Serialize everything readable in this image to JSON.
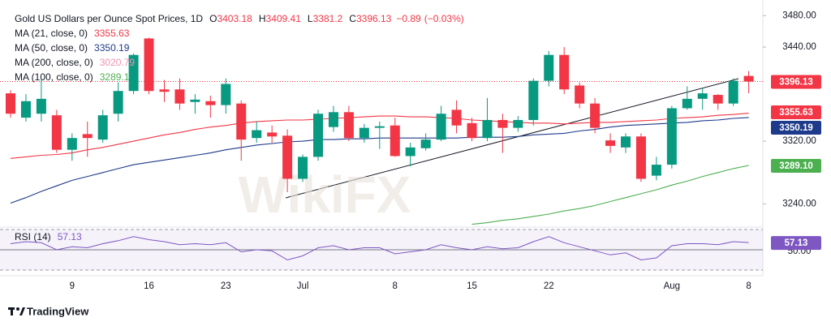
{
  "chart_data": {
    "type": "candlestick",
    "title": "Gold US Dollars per Ounce Spot Prices, 1D",
    "ohlc_labels": [
      "O",
      "H",
      "L",
      "C"
    ],
    "change": {
      "value": -0.89,
      "label": "−0.89"
    },
    "change_pct": {
      "value": -0.03,
      "label": "(−0.03%)"
    },
    "watermark": "WikiFX",
    "brand": "TradingView",
    "up_color": "#089981",
    "down_color": "#f23645",
    "categories": [
      null,
      null,
      null,
      null,
      "9",
      null,
      null,
      null,
      null,
      "16",
      null,
      null,
      null,
      null,
      "23",
      null,
      null,
      null,
      null,
      "Jul",
      null,
      null,
      null,
      null,
      null,
      "8",
      null,
      null,
      null,
      null,
      "15",
      null,
      null,
      null,
      null,
      "22",
      null,
      null,
      null,
      null,
      null,
      null,
      null,
      "Aug",
      null,
      null,
      null,
      null,
      "8"
    ],
    "open": [
      3381,
      3350,
      3355,
      3353,
      3309,
      3329,
      3322,
      3355,
      3384,
      3451,
      3386,
      3386,
      3370,
      3371,
      3366,
      3368,
      3324,
      3331,
      3327,
      3272,
      3300,
      3338,
      3357,
      3324,
      3337,
      3340,
      3301,
      3311,
      3322,
      3360,
      3343,
      3324,
      3347,
      3337,
      3347,
      3397,
      3430,
      3391,
      3368,
      3321,
      3312,
      3326,
      3276,
      3290,
      3362,
      3374,
      3379,
      3368,
      3403.18
    ],
    "high": [
      3385,
      3380,
      3400,
      3360,
      3330,
      3345,
      3360,
      3395,
      3432,
      3452,
      3398,
      3400,
      3380,
      3378,
      3400,
      3372,
      3345,
      3340,
      3335,
      3303,
      3360,
      3365,
      3365,
      3342,
      3345,
      3350,
      3318,
      3330,
      3365,
      3372,
      3350,
      3375,
      3355,
      3352,
      3400,
      3435,
      3440,
      3395,
      3375,
      3330,
      3330,
      3330,
      3300,
      3365,
      3390,
      3388,
      3380,
      3400,
      3409.41
    ],
    "low": [
      3350,
      3345,
      3345,
      3305,
      3295,
      3300,
      3318,
      3345,
      3380,
      3380,
      3370,
      3360,
      3355,
      3350,
      3355,
      3295,
      3318,
      3318,
      3255,
      3268,
      3295,
      3332,
      3320,
      3318,
      3310,
      3300,
      3288,
      3308,
      3320,
      3330,
      3320,
      3320,
      3305,
      3332,
      3340,
      3390,
      3380,
      3362,
      3330,
      3305,
      3305,
      3268,
      3270,
      3285,
      3360,
      3360,
      3360,
      3365,
      3381.2
    ],
    "close": [
      3355,
      3371,
      3374,
      3309,
      3324,
      3324,
      3353,
      3384,
      3430,
      3384,
      3383,
      3368,
      3373,
      3366,
      3393,
      3322,
      3334,
      3326,
      3272,
      3300,
      3355,
      3357,
      3324,
      3337,
      3339,
      3301,
      3312,
      3322,
      3355,
      3340,
      3324,
      3347,
      3337,
      3347,
      3397,
      3430,
      3386,
      3368,
      3337,
      3314,
      3326,
      3272,
      3290,
      3362,
      3374,
      3381,
      3368,
      3397,
      3396.13
    ],
    "series": [
      {
        "name": "MA (21, close, 0)",
        "color": "#f23645",
        "values": [
          3298,
          3300,
          3302,
          3303,
          3305,
          3309,
          3312,
          3316,
          3320,
          3324,
          3328,
          3331,
          3335,
          3338,
          3340,
          3343,
          3345,
          3346,
          3347,
          3347,
          3348,
          3349,
          3350,
          3351,
          3352,
          3352,
          3351,
          3351,
          3350,
          3349,
          3347,
          3346,
          3345,
          3344,
          3343,
          3343,
          3342,
          3343,
          3344,
          3344,
          3345,
          3346,
          3347,
          3349,
          3350,
          3351,
          3353,
          3354,
          3355.63
        ]
      },
      {
        "name": "MA (50, close, 0)",
        "color": "#1e3a8a",
        "values": [
          3241,
          3248,
          3256,
          3263,
          3270,
          3275,
          3280,
          3285,
          3290,
          3293,
          3296,
          3299,
          3302,
          3305,
          3309,
          3312,
          3315,
          3317,
          3319,
          3320,
          3322,
          3322,
          3323,
          3323,
          3324,
          3324,
          3324,
          3324,
          3324,
          3324,
          3325,
          3325,
          3325,
          3326,
          3328,
          3329,
          3330,
          3333,
          3335,
          3338,
          3340,
          3341,
          3342,
          3343,
          3344,
          3346,
          3347,
          3349,
          3350.19
        ]
      },
      {
        "name": "MA (200, close, 0)",
        "color": "#f48fb1",
        "legend_value": 3020.79
      },
      {
        "name": "MA (100, close, 0)",
        "color": "#4caf50",
        "last_label": "3289.10",
        "values": [
          null,
          null,
          null,
          null,
          null,
          null,
          null,
          null,
          null,
          null,
          null,
          null,
          null,
          null,
          null,
          null,
          null,
          null,
          null,
          null,
          null,
          null,
          null,
          null,
          null,
          null,
          null,
          null,
          null,
          null,
          3214,
          3216,
          3219,
          3221,
          3224,
          3227,
          3231,
          3234,
          3238,
          3243,
          3248,
          3253,
          3258,
          3264,
          3269,
          3275,
          3280,
          3285,
          3289.1
        ]
      }
    ],
    "ylim": [
      3212,
      3490
    ],
    "yticks": [
      {
        "value": 3480,
        "label": "3480.00"
      },
      {
        "value": 3440,
        "label": "3440.00"
      },
      {
        "value": 3320,
        "label": "3320.00"
      },
      {
        "value": 3240,
        "label": "3240.00"
      }
    ],
    "rsi": {
      "name": "RSI (14)",
      "color": "#7e57c2",
      "values": [
        56,
        58,
        57,
        50,
        53,
        52,
        56,
        59,
        63,
        60,
        58,
        55,
        56,
        55,
        57,
        48,
        50,
        49,
        40,
        44,
        52,
        54,
        50,
        52,
        52,
        46,
        48,
        50,
        55,
        52,
        50,
        53,
        51,
        52,
        58,
        63,
        57,
        53,
        49,
        45,
        47,
        40,
        42,
        54,
        56,
        56,
        55,
        58,
        57.13
      ],
      "ylim": [
        30,
        70
      ],
      "bands": [
        30,
        70
      ],
      "ticks": [
        {
          "value": 50,
          "label": "50.00"
        }
      ]
    }
  }
}
